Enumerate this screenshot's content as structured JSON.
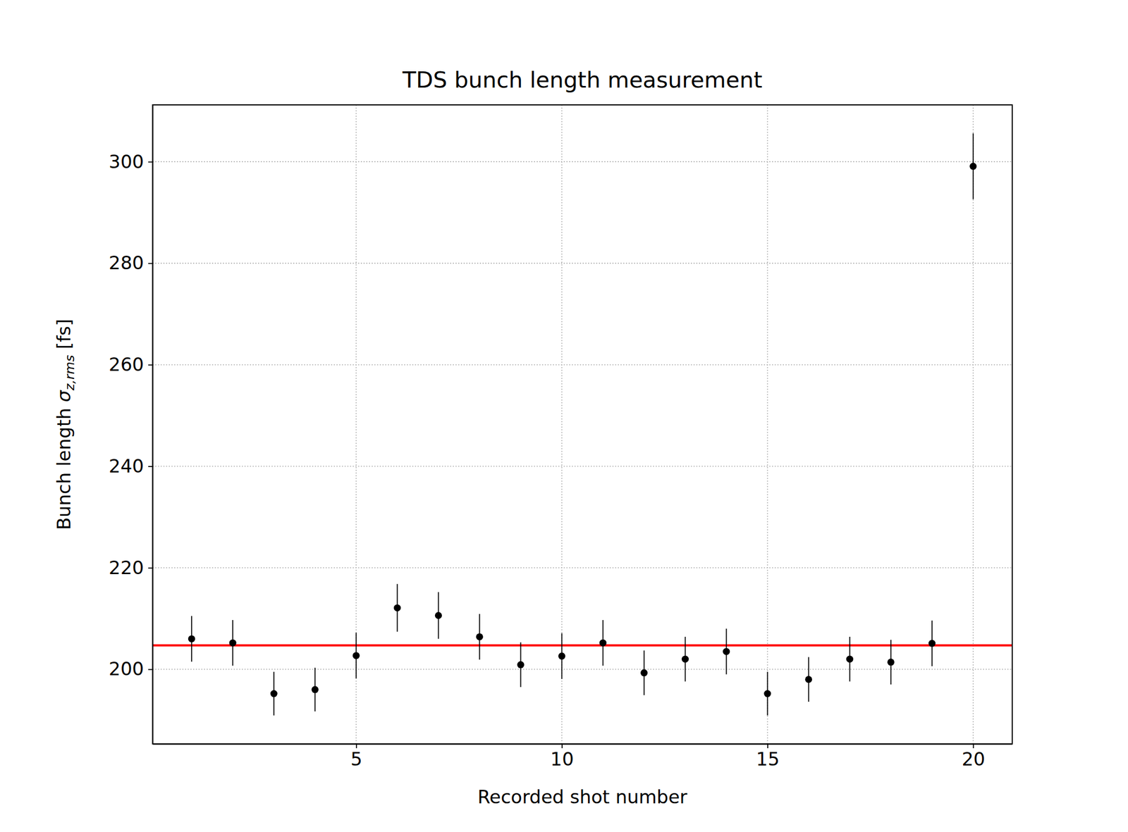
{
  "chart_data": {
    "type": "scatter",
    "title": "TDS bunch length measurement",
    "x_label": "Recorded shot number",
    "y_label": [
      "Bunch length ",
      "σ",
      "z,rms",
      " [fs]"
    ],
    "x": [
      1,
      2,
      3,
      4,
      5,
      6,
      7,
      8,
      9,
      10,
      11,
      12,
      13,
      14,
      15,
      16,
      17,
      18,
      19,
      20
    ],
    "values": [
      206.0,
      205.2,
      195.2,
      196.0,
      202.7,
      212.1,
      210.6,
      206.4,
      200.9,
      202.6,
      205.2,
      199.3,
      202.0,
      203.5,
      195.2,
      198.0,
      202.0,
      201.4,
      205.1,
      299.1
    ],
    "errors": [
      4.5,
      4.5,
      4.3,
      4.3,
      4.5,
      4.7,
      4.6,
      4.5,
      4.4,
      4.5,
      4.5,
      4.4,
      4.4,
      4.5,
      4.3,
      4.4,
      4.4,
      4.4,
      4.5,
      6.5
    ],
    "color": "#000000",
    "marker": "circle",
    "mean_line": {
      "value": 204.7,
      "color": "#ff0000"
    },
    "xlim": [
      0.05,
      20.95
    ],
    "ylim": [
      185.3,
      311.2
    ],
    "xticks": [
      5,
      10,
      15,
      20
    ],
    "yticks": [
      200,
      220,
      240,
      260,
      280,
      300
    ],
    "grid": true
  }
}
